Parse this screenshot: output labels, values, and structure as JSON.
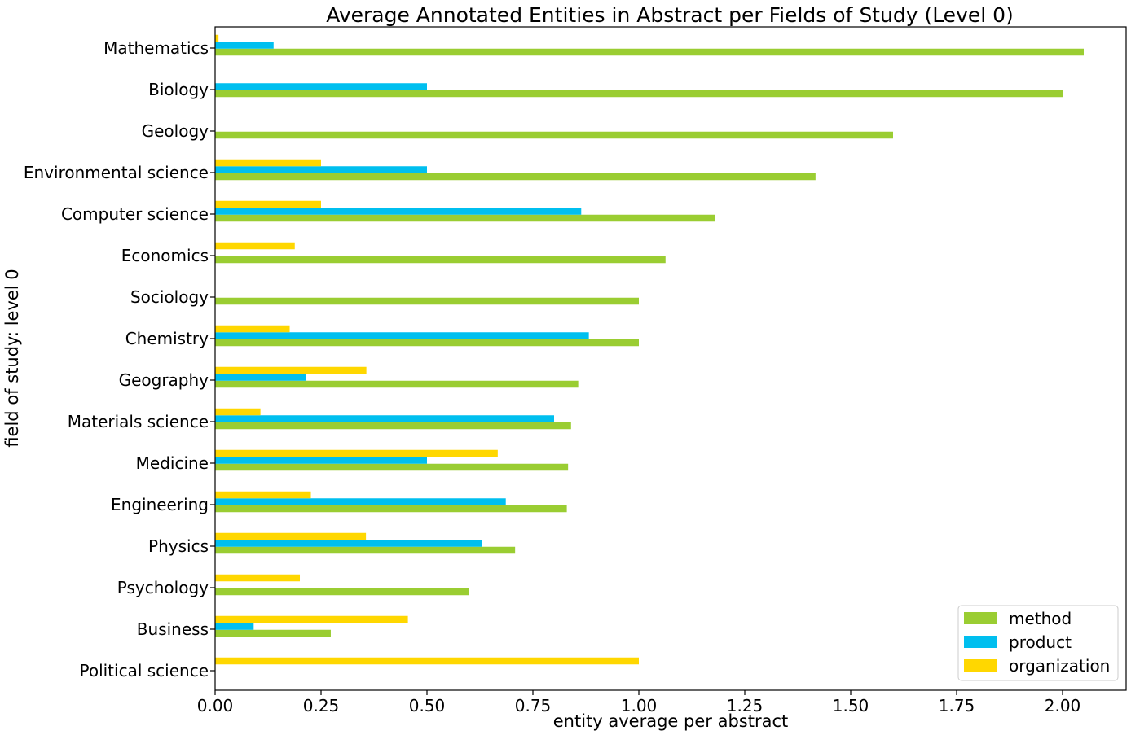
{
  "chart_data": {
    "type": "bar",
    "orientation": "horizontal",
    "title": "Average Annotated Entities in Abstract per Fields of Study (Level 0)",
    "xlabel": "entity average per abstract",
    "ylabel": "field of study: level 0",
    "xlim": [
      0,
      2.15
    ],
    "xticks": [
      0.0,
      0.25,
      0.5,
      0.75,
      1.0,
      1.25,
      1.5,
      1.75,
      2.0
    ],
    "xtick_labels": [
      "0.00",
      "0.25",
      "0.50",
      "0.75",
      "1.00",
      "1.25",
      "1.50",
      "1.75",
      "2.00"
    ],
    "grid": false,
    "legend_position": "bottom-right",
    "categories": [
      "Mathematics",
      "Biology",
      "Geology",
      "Environmental science",
      "Computer science",
      "Economics",
      "Sociology",
      "Chemistry",
      "Geography",
      "Materials science",
      "Medicine",
      "Engineering",
      "Physics",
      "Psychology",
      "Business",
      "Political science"
    ],
    "series": [
      {
        "name": "method",
        "color": "#9ACD32",
        "values": [
          2.05,
          2.0,
          1.6,
          1.417,
          1.179,
          1.063,
          1.0,
          1.0,
          0.857,
          0.84,
          0.833,
          0.83,
          0.708,
          0.6,
          0.273,
          0.0
        ]
      },
      {
        "name": "product",
        "color": "#00BFEF",
        "values": [
          0.138,
          0.5,
          0.0,
          0.5,
          0.864,
          0.0,
          0.0,
          0.882,
          0.214,
          0.8,
          0.5,
          0.686,
          0.63,
          0.0,
          0.091,
          0.0
        ]
      },
      {
        "name": "organization",
        "color": "#FFD700",
        "values": [
          0.008,
          0.0,
          0.0,
          0.25,
          0.25,
          0.188,
          0.0,
          0.176,
          0.357,
          0.107,
          0.667,
          0.226,
          0.356,
          0.2,
          0.455,
          1.0
        ]
      }
    ]
  }
}
